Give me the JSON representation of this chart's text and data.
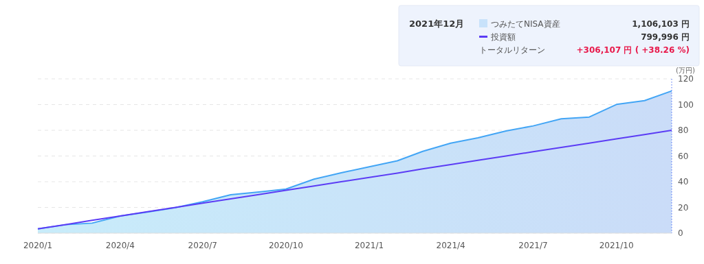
{
  "chart_data": {
    "type": "area",
    "ylabel": "(万円)",
    "x": [
      "2020-01",
      "2020-02",
      "2020-03",
      "2020-04",
      "2020-05",
      "2020-06",
      "2020-07",
      "2020-08",
      "2020-09",
      "2020-10",
      "2020-11",
      "2020-12",
      "2021-01",
      "2021-02",
      "2021-03",
      "2021-04",
      "2021-05",
      "2021-06",
      "2021-07",
      "2021-08",
      "2021-09",
      "2021-10",
      "2021-11",
      "2021-12"
    ],
    "series": [
      {
        "name": "つみたてNISA資産",
        "type": "area",
        "color": "#42a5f5",
        "values": [
          3.3,
          6.6,
          7.8,
          13.3,
          16.4,
          19.9,
          24.4,
          29.9,
          32,
          34.3,
          42,
          46.9,
          51.6,
          56.3,
          63.6,
          70,
          74.1,
          79.5,
          83.4,
          88.9,
          90.3,
          100.1,
          103.1,
          110.6
        ]
      },
      {
        "name": "投資額",
        "type": "line",
        "color": "#5b3cf5",
        "values": [
          3.3,
          6.7,
          10,
          13.3,
          16.7,
          20,
          23.3,
          26.7,
          30,
          33.3,
          36.7,
          40,
          43.3,
          46.7,
          50,
          53.3,
          56.7,
          60,
          63.3,
          66.7,
          70,
          73.3,
          76.7,
          80
        ]
      }
    ],
    "xlim": [
      "2020-01",
      "2021-12"
    ],
    "xticks": [
      {
        "value": "2020-01",
        "label": "2020/1"
      },
      {
        "value": "2020-04",
        "label": "2020/4"
      },
      {
        "value": "2020-07",
        "label": "2020/7"
      },
      {
        "value": "2020-10",
        "label": "2020/10"
      },
      {
        "value": "2021-01",
        "label": "2021/1"
      },
      {
        "value": "2021-04",
        "label": "2021/4"
      },
      {
        "value": "2021-07",
        "label": "2021/7"
      },
      {
        "value": "2021-10",
        "label": "2021/10"
      }
    ],
    "ylim": [
      0,
      120
    ],
    "yticks": [
      0,
      20,
      40,
      60,
      80,
      100,
      120
    ],
    "grid": "y",
    "legend": "top right",
    "ref_lines": [
      {
        "axis": "x",
        "value": "2021-12",
        "color": "#4a6cf7",
        "line_style": "dotted"
      }
    ],
    "annotations": [
      "2021年12月",
      "1,106,103 円",
      "799,996 円",
      "トータルリターン",
      "+306,107 円 ( +38.26 %)"
    ]
  }
}
